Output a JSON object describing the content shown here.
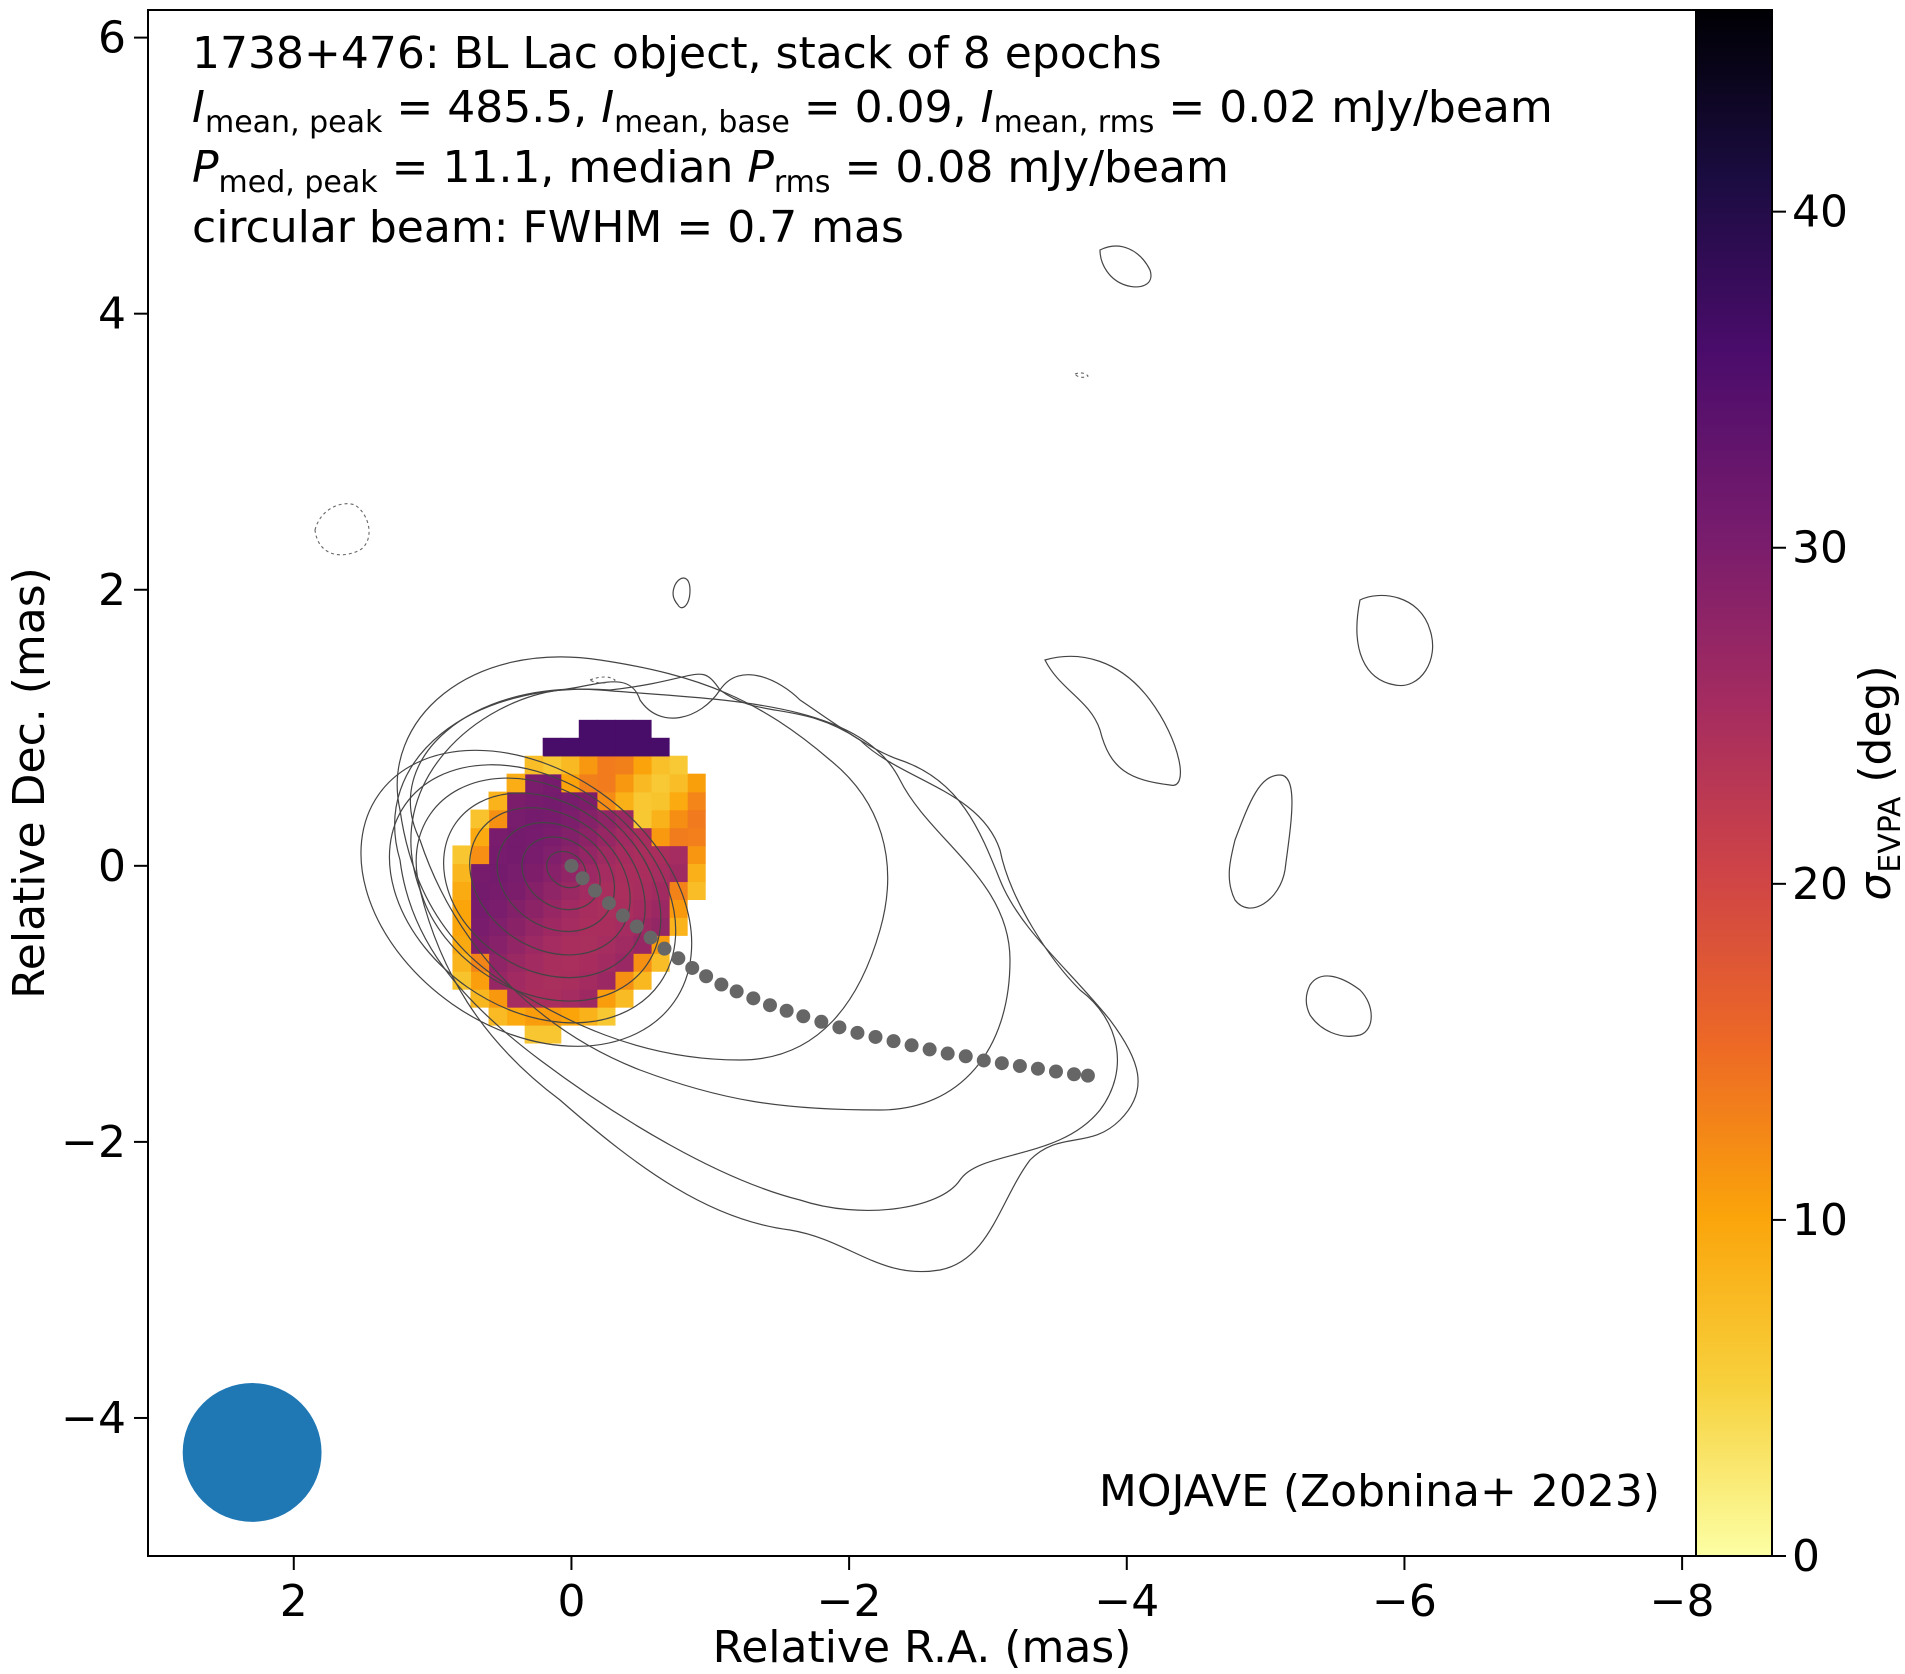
{
  "chart_data": {
    "type": "heatmap",
    "xlabel": "Relative R.A. (mas)",
    "ylabel": "Relative Dec. (mas)",
    "xlim": [
      3.05,
      -8.1
    ],
    "ylim": [
      -5.0,
      6.2
    ],
    "x_ticks": [
      2,
      0,
      -2,
      -4,
      -6,
      -8
    ],
    "y_ticks": [
      6,
      4,
      2,
      0,
      -2,
      -4
    ],
    "x_tick_labels": [
      "2",
      "0",
      "−2",
      "−4",
      "−6",
      "−8"
    ],
    "y_tick_labels": [
      "6",
      "4",
      "2",
      "0",
      "−2",
      "−4"
    ],
    "annotations": {
      "line1": "1738+476: BL Lac object, stack of 8 epochs",
      "line2": {
        "I1": "I",
        "I1_sub": "mean, peak",
        "v1": " = 485.5, ",
        "I2": "I",
        "I2_sub": "mean, base",
        "v2": " = 0.09, ",
        "I3": "I",
        "I3_sub": "mean, rms",
        "v3": " = 0.02 mJy/beam"
      },
      "line3": {
        "P1": "P",
        "P1_sub": "med, peak",
        "v1": " = 11.1, median ",
        "P2": "P",
        "P2_sub": "rms",
        "v2": " = 0.08 mJy/beam"
      },
      "line4": "circular beam: FWHM = 0.7 mas",
      "credit": "MOJAVE (Zobnina+ 2023)"
    },
    "beam": {
      "fwhm_mas": 0.7,
      "center": [
        2.3,
        -4.25
      ],
      "color": "#1f77b4"
    },
    "ridgeline": {
      "color": "#666666",
      "points": [
        [
          0,
          0
        ],
        [
          -0.08,
          -0.09
        ],
        [
          -0.17,
          -0.18
        ],
        [
          -0.27,
          -0.27
        ],
        [
          -0.37,
          -0.36
        ],
        [
          -0.47,
          -0.44
        ],
        [
          -0.57,
          -0.52
        ],
        [
          -0.67,
          -0.6
        ],
        [
          -0.77,
          -0.67
        ],
        [
          -0.87,
          -0.74
        ],
        [
          -0.97,
          -0.8
        ],
        [
          -1.08,
          -0.86
        ],
        [
          -1.19,
          -0.91
        ],
        [
          -1.31,
          -0.96
        ],
        [
          -1.43,
          -1.01
        ],
        [
          -1.55,
          -1.05
        ],
        [
          -1.67,
          -1.09
        ],
        [
          -1.8,
          -1.13
        ],
        [
          -1.93,
          -1.17
        ],
        [
          -2.06,
          -1.21
        ],
        [
          -2.19,
          -1.24
        ],
        [
          -2.32,
          -1.27
        ],
        [
          -2.45,
          -1.3
        ],
        [
          -2.58,
          -1.33
        ],
        [
          -2.71,
          -1.36
        ],
        [
          -2.84,
          -1.38
        ],
        [
          -2.97,
          -1.41
        ],
        [
          -3.1,
          -1.43
        ],
        [
          -3.23,
          -1.45
        ],
        [
          -3.36,
          -1.47
        ],
        [
          -3.49,
          -1.49
        ],
        [
          -3.62,
          -1.51
        ],
        [
          -3.72,
          -1.52
        ]
      ]
    },
    "colorbar": {
      "label_base": "σ",
      "label_sub": "EVPA",
      "label_unit": " (deg)",
      "range": [
        0,
        46
      ],
      "ticks": [
        0,
        10,
        20,
        30,
        40
      ],
      "tick_labels": [
        "0",
        "10",
        "20",
        "30",
        "40"
      ],
      "colormap": "inferno_r",
      "stops": [
        "#fcffa4",
        "#f7d13d",
        "#fba40a",
        "#ed6925",
        "#cf4446",
        "#a52c60",
        "#781c6d",
        "#4a0c6b",
        "#1b0c41",
        "#000004"
      ]
    },
    "polarization_map": {
      "description_free": true,
      "grid_step_mas": 0.13,
      "center": [
        -0.05,
        -0.1
      ],
      "semi_major_mas": 1.2,
      "semi_minor_mas": 0.85,
      "tilt_deg": 62,
      "edge_sigma_deg": 6,
      "core_sigma_deg": 28
    },
    "contours": {
      "center": [
        0,
        0
      ],
      "ellipses": [
        [
          0.15,
          0.12
        ],
        [
          0.3,
          0.24
        ],
        [
          0.45,
          0.36
        ],
        [
          0.62,
          0.48
        ],
        [
          0.78,
          0.6
        ],
        [
          0.95,
          0.72
        ],
        [
          1.12,
          0.82
        ],
        [
          1.3,
          0.93
        ]
      ],
      "tilt_deg": 35
    }
  }
}
